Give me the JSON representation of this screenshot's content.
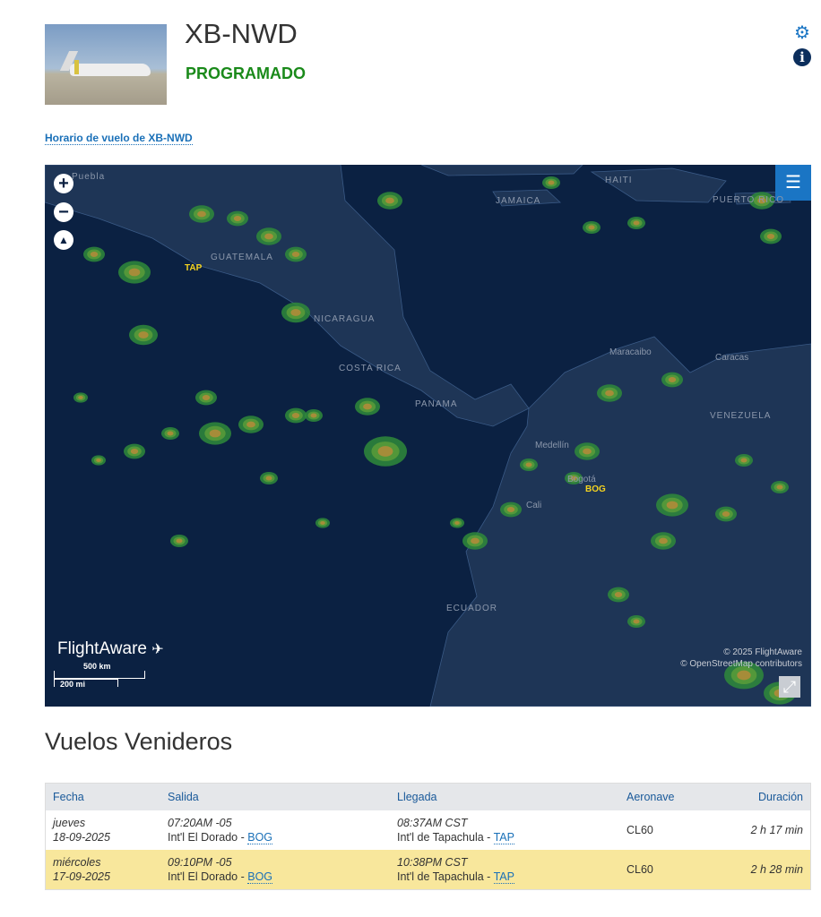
{
  "header": {
    "registration": "XB-NWD",
    "status": "PROGRAMADO",
    "status_color": "#1a8a1a",
    "schedule_link": "Horario de vuelo de XB-NWD",
    "icons": [
      "gear-icon",
      "info-icon"
    ]
  },
  "map": {
    "labels": {
      "puebla": "Puebla",
      "jamaica": "JAMAICA",
      "haiti": "HAITI",
      "puerto_rico": "PUERTO RICO",
      "guatemala": "GUATEMALA",
      "nicaragua": "NICARAGUA",
      "costa_rica": "COSTA RICA",
      "panama": "PANAMA",
      "maracaibo": "Maracaibo",
      "caracas": "Caracas",
      "venezuela": "VENEZUELA",
      "medellin": "Medellín",
      "bogota": "Bogotá",
      "cali": "Cali",
      "ecuador": "ECUADOR"
    },
    "airports": {
      "origin": "BOG",
      "destination": "TAP"
    },
    "logo": "FlightAware",
    "scale": {
      "km": "500 km",
      "mi": "200 mi"
    },
    "attribution": [
      "© 2025 FlightAware",
      "© OpenStreetMap contributors"
    ]
  },
  "upcoming": {
    "title": "Vuelos Venideros",
    "columns": [
      "Fecha",
      "Salida",
      "Llegada",
      "Aeronave",
      "Duración"
    ],
    "rows": [
      {
        "day": "jueves",
        "date": "18-09-2025",
        "dep_time": "07:20AM -05",
        "dep_airport": "Int'l El Dorado - ",
        "dep_code": "BOG",
        "arr_time": "08:37AM CST",
        "arr_airport": "Int'l de Tapachula - ",
        "arr_code": "TAP",
        "aircraft": "CL60",
        "duration": "2 h 17 min"
      },
      {
        "day": "miércoles",
        "date": "17-09-2025",
        "dep_time": "09:10PM -05",
        "dep_airport": "Int'l El Dorado - ",
        "dep_code": "BOG",
        "arr_time": "10:38PM CST",
        "arr_airport": "Int'l de Tapachula - ",
        "arr_code": "TAP",
        "aircraft": "CL60",
        "duration": "2 h 28 min"
      }
    ]
  }
}
